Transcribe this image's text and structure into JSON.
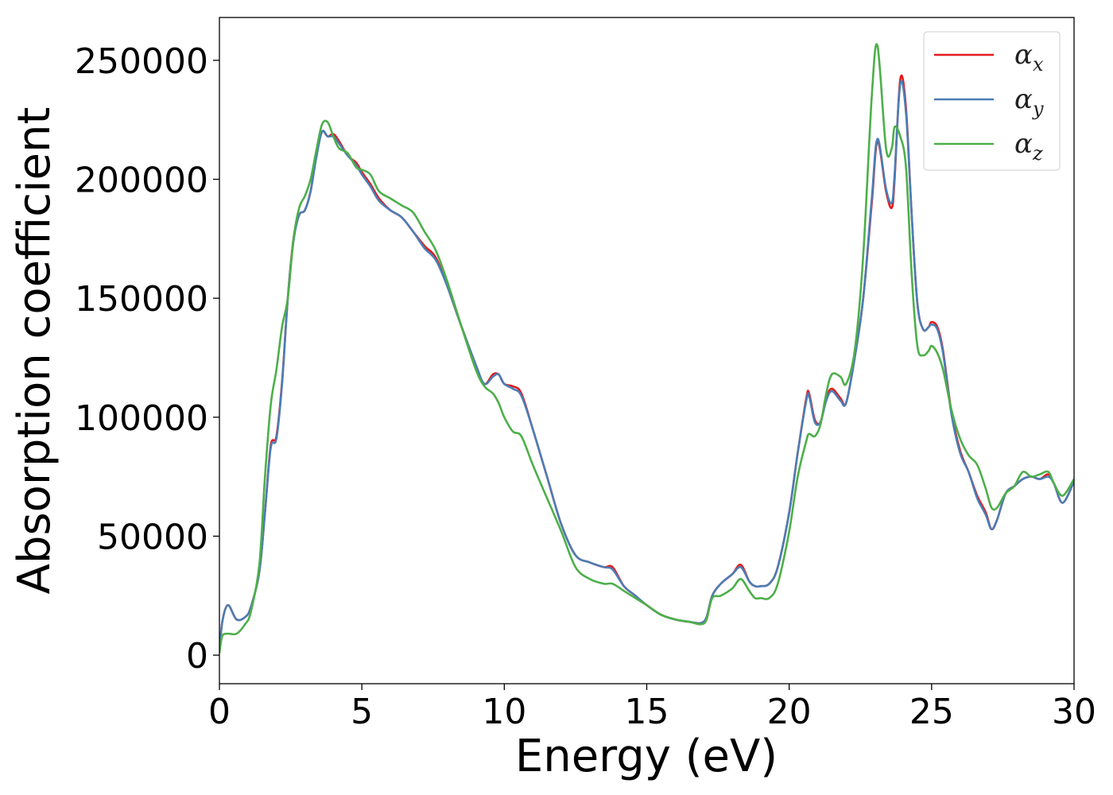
{
  "chart_data": {
    "type": "line",
    "title": "",
    "xlabel": "Energy (eV)",
    "ylabel": "Absorption coefficient",
    "xlim": [
      0,
      30
    ],
    "ylim": [
      -12000,
      268000
    ],
    "xticks": [
      0,
      5,
      10,
      15,
      20,
      25,
      30
    ],
    "yticks": [
      0,
      50000,
      100000,
      150000,
      200000,
      250000
    ],
    "xtick_labels": [
      "0",
      "5",
      "10",
      "15",
      "20",
      "25",
      "30"
    ],
    "ytick_labels": [
      "0",
      "50000",
      "100000",
      "150000",
      "200000",
      "250000"
    ],
    "grid": false,
    "legend_position": "top-right",
    "series": [
      {
        "name": "α_x",
        "label_main": "α",
        "label_sub": "x",
        "color": "#e41a1c",
        "x": [
          0,
          0.1,
          0.3,
          0.6,
          0.9,
          1.1,
          1.4,
          1.6,
          1.8,
          2.0,
          2.2,
          2.4,
          2.6,
          2.8,
          3.0,
          3.2,
          3.4,
          3.6,
          3.8,
          4.0,
          4.2,
          4.5,
          4.8,
          5.0,
          5.3,
          5.6,
          6.0,
          6.4,
          6.8,
          7.2,
          7.6,
          8.0,
          8.5,
          9.0,
          9.3,
          9.6,
          9.8,
          10.0,
          10.3,
          10.6,
          11.0,
          11.5,
          12.0,
          12.5,
          13.0,
          13.5,
          13.8,
          14.2,
          14.6,
          15.0,
          15.5,
          16.0,
          16.5,
          16.9,
          17.1,
          17.3,
          17.6,
          18.0,
          18.3,
          18.6,
          18.8,
          19.0,
          19.3,
          19.6,
          20.0,
          20.3,
          20.6,
          20.7,
          20.9,
          21.1,
          21.3,
          21.5,
          21.8,
          22.0,
          22.3,
          22.6,
          22.9,
          23.1,
          23.4,
          23.6,
          23.7,
          23.9,
          24.1,
          24.3,
          24.5,
          24.7,
          24.9,
          25.0,
          25.2,
          25.4,
          25.7,
          26.0,
          26.3,
          26.6,
          26.9,
          27.1,
          27.3,
          27.6,
          27.9,
          28.2,
          28.5,
          28.8,
          29.1,
          29.3,
          29.6,
          30.0
        ],
        "y": [
          1000,
          14000,
          21000,
          15000,
          16000,
          20000,
          35000,
          60000,
          88000,
          92000,
          115000,
          150000,
          175000,
          185000,
          187000,
          195000,
          210000,
          220000,
          218000,
          219000,
          216000,
          210000,
          207000,
          203000,
          198000,
          192000,
          187000,
          184000,
          178000,
          172000,
          167000,
          155000,
          138000,
          122000,
          114000,
          118000,
          118000,
          114000,
          113000,
          110000,
          95000,
          75000,
          55000,
          42000,
          39000,
          37000,
          37000,
          29000,
          25000,
          21000,
          17000,
          15000,
          14000,
          13500,
          16000,
          25000,
          30000,
          34000,
          38000,
          31000,
          29000,
          29000,
          30000,
          37000,
          60000,
          85000,
          108000,
          110000,
          99000,
          98000,
          108000,
          112000,
          108000,
          106000,
          125000,
          150000,
          190000,
          216000,
          195000,
          188000,
          200000,
          242000,
          230000,
          185000,
          148000,
          137000,
          138000,
          140000,
          138000,
          128000,
          102000,
          86000,
          77000,
          67000,
          60000,
          53000,
          57000,
          68000,
          71000,
          74000,
          75000,
          74000,
          76000,
          72000,
          64000,
          73000
        ]
      },
      {
        "name": "α_y",
        "label_main": "α",
        "label_sub": "y",
        "color": "#4b7db5",
        "x": [
          0,
          0.1,
          0.3,
          0.6,
          0.9,
          1.1,
          1.4,
          1.6,
          1.8,
          2.0,
          2.2,
          2.4,
          2.6,
          2.8,
          3.0,
          3.2,
          3.4,
          3.6,
          3.8,
          4.0,
          4.2,
          4.5,
          4.8,
          5.0,
          5.3,
          5.6,
          6.0,
          6.4,
          6.8,
          7.2,
          7.6,
          8.0,
          8.5,
          9.0,
          9.3,
          9.6,
          9.8,
          10.0,
          10.3,
          10.6,
          11.0,
          11.5,
          12.0,
          12.5,
          13.0,
          13.5,
          13.8,
          14.2,
          14.6,
          15.0,
          15.5,
          16.0,
          16.5,
          16.9,
          17.1,
          17.3,
          17.6,
          18.0,
          18.3,
          18.6,
          18.8,
          19.0,
          19.3,
          19.6,
          20.0,
          20.3,
          20.6,
          20.7,
          20.9,
          21.1,
          21.3,
          21.5,
          21.8,
          22.0,
          22.3,
          22.6,
          22.9,
          23.1,
          23.4,
          23.6,
          23.7,
          23.9,
          24.1,
          24.3,
          24.5,
          24.7,
          24.9,
          25.0,
          25.2,
          25.4,
          25.7,
          26.0,
          26.3,
          26.6,
          26.9,
          27.1,
          27.3,
          27.6,
          27.9,
          28.2,
          28.5,
          28.8,
          29.1,
          29.3,
          29.6,
          30.0
        ],
        "y": [
          1000,
          14000,
          21000,
          15000,
          16000,
          20000,
          35000,
          60000,
          87000,
          91000,
          114000,
          150000,
          174000,
          185000,
          187000,
          195000,
          209000,
          220000,
          218000,
          218000,
          215000,
          210000,
          206000,
          202000,
          197000,
          191000,
          187000,
          184000,
          178000,
          171000,
          166000,
          155000,
          138000,
          122000,
          114000,
          117000,
          118000,
          114000,
          112000,
          109000,
          95000,
          75000,
          55000,
          42000,
          39000,
          37000,
          36000,
          29000,
          25000,
          21000,
          17000,
          15000,
          14000,
          13500,
          16000,
          25000,
          30000,
          34000,
          37000,
          31000,
          29000,
          29000,
          30000,
          37000,
          60000,
          85000,
          107000,
          109000,
          98000,
          98000,
          107000,
          111000,
          107000,
          106000,
          125000,
          150000,
          192000,
          217000,
          196000,
          190000,
          202000,
          240000,
          228000,
          185000,
          148000,
          137000,
          138000,
          139000,
          137000,
          127000,
          101000,
          85000,
          77000,
          66000,
          59000,
          53000,
          57000,
          68000,
          71000,
          74000,
          75000,
          74000,
          75000,
          72000,
          64000,
          73000
        ]
      },
      {
        "name": "α_z",
        "label_main": "α",
        "label_sub": "z",
        "color": "#4daf4a",
        "x": [
          0,
          0.1,
          0.3,
          0.6,
          0.9,
          1.1,
          1.4,
          1.6,
          1.8,
          2.0,
          2.2,
          2.4,
          2.6,
          2.8,
          3.0,
          3.2,
          3.4,
          3.6,
          3.8,
          4.0,
          4.2,
          4.5,
          4.8,
          5.0,
          5.3,
          5.6,
          6.0,
          6.4,
          6.8,
          7.2,
          7.6,
          8.0,
          8.5,
          9.0,
          9.3,
          9.6,
          9.8,
          10.0,
          10.3,
          10.6,
          11.0,
          11.5,
          12.0,
          12.5,
          13.0,
          13.5,
          13.8,
          14.2,
          14.6,
          15.0,
          15.5,
          16.0,
          16.5,
          16.9,
          17.1,
          17.3,
          17.6,
          18.0,
          18.3,
          18.6,
          18.8,
          19.0,
          19.3,
          19.6,
          20.0,
          20.3,
          20.6,
          20.7,
          20.9,
          21.1,
          21.3,
          21.5,
          21.8,
          22.0,
          22.3,
          22.6,
          22.9,
          23.1,
          23.4,
          23.6,
          23.7,
          23.9,
          24.1,
          24.3,
          24.5,
          24.7,
          24.9,
          25.0,
          25.2,
          25.4,
          25.7,
          26.0,
          26.3,
          26.6,
          26.9,
          27.1,
          27.3,
          27.6,
          27.9,
          28.2,
          28.5,
          28.8,
          29.1,
          29.3,
          29.6,
          30.0
        ],
        "y": [
          1000,
          8000,
          9000,
          9000,
          13000,
          18000,
          38000,
          75000,
          105000,
          120000,
          138000,
          150000,
          175000,
          188000,
          193000,
          200000,
          212000,
          223000,
          224000,
          218000,
          213000,
          211000,
          205000,
          204000,
          202000,
          195000,
          192000,
          189000,
          186000,
          178000,
          170000,
          157000,
          138000,
          120000,
          113000,
          110000,
          106000,
          100000,
          94000,
          92000,
          80000,
          66000,
          52000,
          37000,
          32000,
          30000,
          30000,
          27000,
          24000,
          21000,
          17000,
          15000,
          14000,
          13000,
          15000,
          24000,
          25000,
          28000,
          32000,
          27000,
          24000,
          24000,
          24000,
          30000,
          52000,
          75000,
          90000,
          93000,
          92000,
          97000,
          110000,
          118000,
          117000,
          114000,
          128000,
          168000,
          235000,
          256000,
          213000,
          213000,
          222000,
          218000,
          205000,
          160000,
          130000,
          126000,
          128000,
          130000,
          127000,
          120000,
          103000,
          91000,
          84000,
          80000,
          70000,
          62000,
          62000,
          68000,
          71000,
          77000,
          75000,
          76000,
          77000,
          72000,
          67000,
          74000
        ]
      }
    ]
  }
}
